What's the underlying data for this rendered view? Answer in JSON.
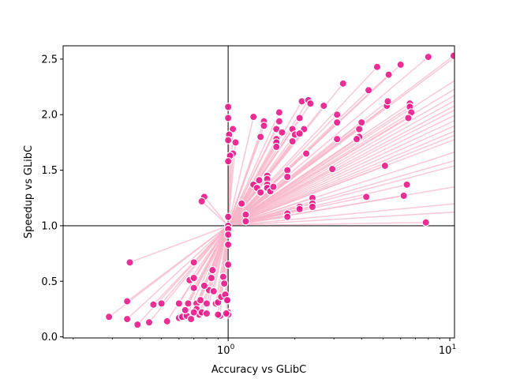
{
  "chart_data": {
    "type": "scatter",
    "title": "",
    "xlabel": "Accuracy vs GLibC",
    "ylabel": "Speedup vs GLibC",
    "x_scale": "log",
    "xlim": [
      0.18,
      10.5
    ],
    "ylim": [
      -0.01,
      2.62
    ],
    "x_tick_labels": [
      {
        "value": 1,
        "label": "10",
        "exp": "0"
      },
      {
        "value": 10,
        "label": "10",
        "exp": "1"
      }
    ],
    "y_ticks": [
      0.0,
      0.5,
      1.0,
      1.5,
      2.0,
      2.5
    ],
    "y_tick_labels": [
      "0.0",
      "0.5",
      "1.0",
      "1.5",
      "2.0",
      "2.5"
    ],
    "reference_lines": {
      "x": 1.0,
      "y": 1.0,
      "color": "#555555"
    },
    "colors": {
      "point": "#e8198b",
      "line": "#f7b6c8"
    },
    "grid": false,
    "legend": "none",
    "connect_to_origin": [
      1.0,
      1.0
    ],
    "points": [
      [
        2.15,
        2.12
      ],
      [
        2.3,
        2.13
      ],
      [
        2.35,
        2.1
      ],
      [
        2.7,
        2.08
      ],
      [
        3.3,
        2.28
      ],
      [
        4.3,
        2.22
      ],
      [
        4.7,
        2.43
      ],
      [
        5.3,
        2.36
      ],
      [
        6.0,
        2.45
      ],
      [
        8.0,
        2.52
      ],
      [
        10.4,
        2.53
      ],
      [
        5.2,
        2.08
      ],
      [
        5.25,
        2.12
      ],
      [
        6.6,
        2.1
      ],
      [
        6.6,
        2.07
      ],
      [
        6.7,
        2.02
      ],
      [
        6.5,
        1.97
      ],
      [
        3.1,
        2.0
      ],
      [
        3.1,
        1.93
      ],
      [
        4.0,
        1.93
      ],
      [
        3.9,
        1.87
      ],
      [
        3.9,
        1.8
      ],
      [
        3.8,
        1.78
      ],
      [
        3.1,
        1.78
      ],
      [
        1.3,
        1.98
      ],
      [
        1.7,
        2.02
      ],
      [
        1.45,
        1.94
      ],
      [
        1.45,
        1.9
      ],
      [
        1.7,
        1.94
      ],
      [
        1.65,
        1.87
      ],
      [
        1.65,
        1.78
      ],
      [
        1.65,
        1.75
      ],
      [
        1.65,
        1.71
      ],
      [
        1.4,
        1.8
      ],
      [
        1.75,
        1.84
      ],
      [
        1.95,
        1.87
      ],
      [
        2.0,
        1.82
      ],
      [
        1.95,
        1.76
      ],
      [
        2.1,
        1.97
      ],
      [
        2.2,
        1.87
      ],
      [
        2.25,
        1.65
      ],
      [
        2.1,
        1.83
      ],
      [
        1.05,
        1.87
      ],
      [
        1.08,
        1.75
      ],
      [
        1.05,
        1.65
      ],
      [
        1.02,
        1.63
      ],
      [
        1.0,
        1.58
      ],
      [
        1.0,
        1.97
      ],
      [
        1.0,
        2.07
      ],
      [
        1.01,
        1.82
      ],
      [
        1.0,
        1.77
      ],
      [
        1.3,
        1.37
      ],
      [
        1.35,
        1.34
      ],
      [
        1.38,
        1.41
      ],
      [
        1.4,
        1.3
      ],
      [
        1.5,
        1.45
      ],
      [
        1.5,
        1.42
      ],
      [
        1.5,
        1.37
      ],
      [
        1.5,
        1.34
      ],
      [
        1.55,
        1.31
      ],
      [
        1.6,
        1.35
      ],
      [
        1.85,
        1.5
      ],
      [
        1.85,
        1.44
      ],
      [
        2.4,
        1.25
      ],
      [
        2.4,
        1.2
      ],
      [
        2.4,
        1.17
      ],
      [
        2.1,
        1.17
      ],
      [
        2.1,
        1.15
      ],
      [
        1.85,
        1.11
      ],
      [
        1.85,
        1.08
      ],
      [
        2.95,
        1.51
      ],
      [
        4.2,
        1.26
      ],
      [
        5.1,
        1.54
      ],
      [
        6.2,
        1.27
      ],
      [
        6.4,
        1.37
      ],
      [
        7.8,
        1.03
      ],
      [
        1.15,
        1.2
      ],
      [
        1.2,
        1.1
      ],
      [
        1.2,
        1.04
      ],
      [
        1.0,
        1.08
      ],
      [
        1.0,
        1.0
      ],
      [
        1.0,
        0.97
      ],
      [
        1.0,
        0.92
      ],
      [
        1.0,
        0.83
      ],
      [
        1.0,
        0.65
      ],
      [
        1.0,
        0.33
      ],
      [
        1.0,
        0.22
      ],
      [
        1.0,
        0.2
      ],
      [
        0.78,
        1.26
      ],
      [
        0.76,
        1.22
      ],
      [
        0.36,
        0.67
      ],
      [
        0.35,
        0.32
      ],
      [
        0.29,
        0.18
      ],
      [
        0.35,
        0.16
      ],
      [
        0.39,
        0.11
      ],
      [
        0.44,
        0.13
      ],
      [
        0.46,
        0.29
      ],
      [
        0.5,
        0.3
      ],
      [
        0.53,
        0.14
      ],
      [
        0.6,
        0.17
      ],
      [
        0.6,
        0.3
      ],
      [
        0.62,
        0.18
      ],
      [
        0.65,
        0.19
      ],
      [
        0.67,
        0.51
      ],
      [
        0.7,
        0.53
      ],
      [
        0.7,
        0.67
      ],
      [
        0.7,
        0.44
      ],
      [
        0.72,
        0.3
      ],
      [
        0.72,
        0.25
      ],
      [
        0.74,
        0.2
      ],
      [
        0.75,
        0.33
      ],
      [
        0.76,
        0.22
      ],
      [
        0.8,
        0.3
      ],
      [
        0.82,
        0.42
      ],
      [
        0.84,
        0.53
      ],
      [
        0.85,
        0.6
      ],
      [
        0.88,
        0.3
      ],
      [
        0.9,
        0.31
      ],
      [
        0.92,
        0.19
      ],
      [
        0.93,
        0.36
      ],
      [
        0.95,
        0.54
      ],
      [
        0.96,
        0.48
      ],
      [
        0.97,
        0.38
      ],
      [
        0.98,
        0.21
      ],
      [
        0.99,
        0.33
      ],
      [
        0.8,
        0.21
      ],
      [
        0.68,
        0.16
      ],
      [
        0.7,
        0.22
      ],
      [
        0.78,
        0.46
      ],
      [
        0.86,
        0.41
      ],
      [
        0.9,
        0.2
      ],
      [
        0.66,
        0.3
      ],
      [
        0.64,
        0.24
      ]
    ],
    "offscreen_segments": [
      [
        1.0,
        1.0,
        12,
        1.21
      ],
      [
        1.0,
        1.0,
        12,
        1.13
      ],
      [
        1.0,
        1.0,
        12,
        1.37
      ],
      [
        1.0,
        1.0,
        12,
        1.57
      ],
      [
        1.0,
        1.0,
        12,
        1.62
      ],
      [
        1.0,
        1.0,
        12,
        1.7
      ],
      [
        1.0,
        1.0,
        12,
        1.82
      ],
      [
        1.0,
        1.0,
        12,
        1.86
      ],
      [
        1.0,
        1.0,
        12,
        1.9
      ],
      [
        1.0,
        1.0,
        12,
        1.95
      ],
      [
        1.0,
        1.0,
        12,
        2.0
      ],
      [
        1.0,
        1.0,
        12,
        2.05
      ],
      [
        1.0,
        1.0,
        12,
        2.1
      ],
      [
        1.0,
        1.0,
        12,
        2.14
      ],
      [
        1.0,
        1.0,
        12,
        2.19
      ],
      [
        1.0,
        1.0,
        12,
        2.24
      ],
      [
        1.0,
        1.0,
        12,
        2.3
      ],
      [
        1.0,
        1.0,
        12,
        2.38
      ],
      [
        1.0,
        1.0,
        12,
        2.6
      ]
    ]
  }
}
